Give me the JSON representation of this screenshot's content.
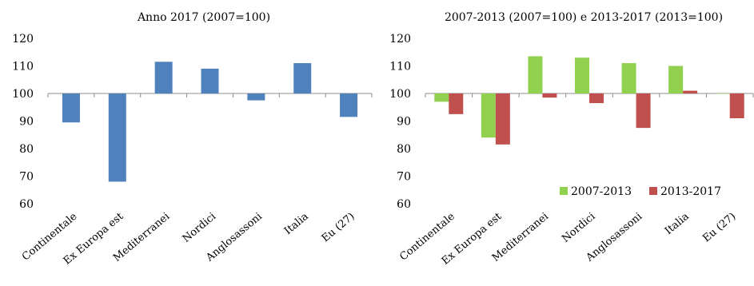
{
  "chart_data": [
    {
      "type": "bar",
      "title": "Anno 2017 (2007=100)",
      "categories": [
        "Continentale",
        "Ex Europa est",
        "Mediterranei",
        "Nordici",
        "Anglosassoni",
        "Italia",
        "Eu (27)"
      ],
      "baseline": 100,
      "series": [
        {
          "values": [
            89.5,
            68,
            111.5,
            109,
            97.5,
            111,
            91.5
          ],
          "color": "#4f81bd"
        }
      ],
      "ylim": [
        60,
        120
      ],
      "yticks": [
        60,
        70,
        80,
        90,
        100,
        110,
        120
      ],
      "grid": false,
      "legend": "none"
    },
    {
      "type": "bar",
      "title": "2007-2013 (2007=100) e 2013-2017 (2013=100)",
      "categories": [
        "Continentale",
        "Ex Europa est",
        "Mediterranei",
        "Nordici",
        "Anglosassoni",
        "Italia",
        "Eu (27)"
      ],
      "baseline": 100,
      "series": [
        {
          "name": "2007-2013",
          "values": [
            97,
            84,
            113.5,
            113,
            111,
            110,
            100
          ],
          "color": "#92d050"
        },
        {
          "name": "2013-2017",
          "values": [
            92.5,
            81.5,
            98.5,
            96.5,
            87.5,
            101,
            91
          ],
          "color": "#c0504d"
        }
      ],
      "ylim": [
        60,
        120
      ],
      "yticks": [
        60,
        70,
        80,
        90,
        100,
        110,
        120
      ],
      "grid": false,
      "legend": "bottom-right"
    }
  ]
}
